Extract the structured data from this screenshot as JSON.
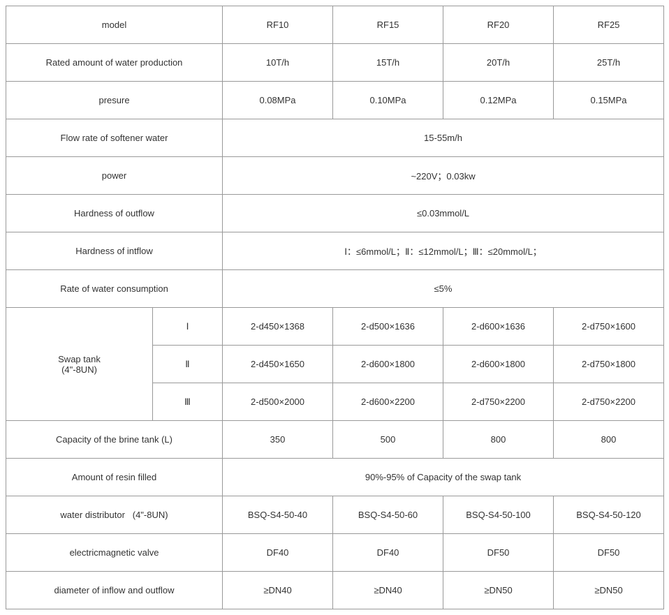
{
  "table": {
    "columns_label_width": 210,
    "columns_sub_width": 100,
    "columns_data_width": 158,
    "border_color": "#999999",
    "text_color": "#333333",
    "font_size": 13,
    "rows": {
      "model": {
        "label": "model",
        "values": [
          "RF10",
          "RF15",
          "RF20",
          "RF25"
        ]
      },
      "rated": {
        "label": "Rated amount of water production",
        "values": [
          "10T/h",
          "15T/h",
          "20T/h",
          "25T/h"
        ]
      },
      "pressure": {
        "label": "presure",
        "values": [
          "0.08MPa",
          "0.10MPa",
          "0.12MPa",
          "0.15MPa"
        ]
      },
      "flowrate": {
        "label": "Flow rate of softener water",
        "merged": "15-55m/h"
      },
      "power": {
        "label": "power",
        "merged": "~220V；0.03kw"
      },
      "hard_out": {
        "label": "Hardness of outflow",
        "merged": "≤0.03mmol/L"
      },
      "hard_in": {
        "label": "Hardness of intflow",
        "merged": "Ⅰ：≤6mmol/L；Ⅱ：≤12mmol/L；Ⅲ：≤20mmol/L；"
      },
      "consumption": {
        "label": "Rate of water consumption",
        "merged": "≤5%"
      },
      "swap": {
        "label": "Swap tank\n(4\"-8UN)",
        "sub": [
          {
            "key": "Ⅰ",
            "values": [
              "2-d450×1368",
              "2-d500×1636",
              "2-d600×1636",
              "2-d750×1600"
            ]
          },
          {
            "key": "Ⅱ",
            "values": [
              "2-d450×1650",
              "2-d600×1800",
              "2-d600×1800",
              "2-d750×1800"
            ]
          },
          {
            "key": "Ⅲ",
            "values": [
              "2-d500×2000",
              "2-d600×2200",
              "2-d750×2200",
              "2-d750×2200"
            ]
          }
        ]
      },
      "brine": {
        "label": "Capacity of the brine tank (L)",
        "values": [
          "350",
          "500",
          "800",
          "800"
        ]
      },
      "resin": {
        "label": "Amount of resin filled",
        "merged": "90%-95% of Capacity of the swap tank"
      },
      "distributor": {
        "label": "water distributor   (4\"-8UN)",
        "values": [
          "BSQ-S4-50-40",
          "BSQ-S4-50-60",
          "BSQ-S4-50-100",
          "BSQ-S4-50-120"
        ]
      },
      "valve": {
        "label": "electricmagnetic valve",
        "values": [
          "DF40",
          "DF40",
          "DF50",
          "DF50"
        ]
      },
      "diameter": {
        "label": "diameter of inflow and outflow",
        "values": [
          "≥DN40",
          "≥DN40",
          "≥DN50",
          "≥DN50"
        ]
      }
    }
  }
}
